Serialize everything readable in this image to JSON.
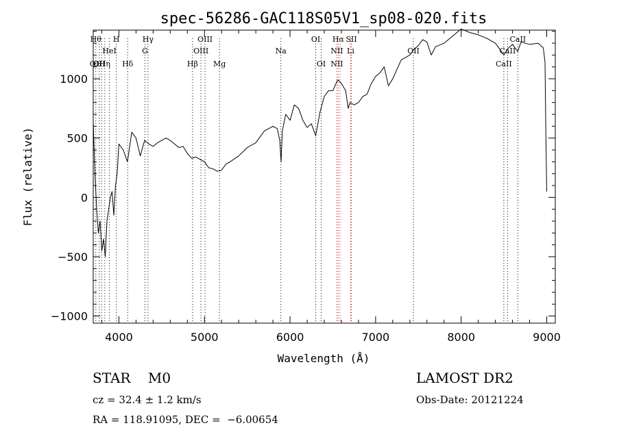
{
  "chart_data": {
    "type": "line",
    "title": "spec-56286-GAC118S05V1_sp08-020.fits",
    "xlabel": "Wavelength (Å)",
    "ylabel": "Flux (relative)",
    "xlim": [
      3700,
      9100
    ],
    "ylim": [
      -1060,
      1410
    ],
    "xticks": [
      4000,
      5000,
      6000,
      7000,
      8000,
      9000
    ],
    "xtick_labels": [
      "4000",
      "5000",
      "6000",
      "7000",
      "8000",
      "9000"
    ],
    "yticks": [
      -1000,
      -500,
      0,
      500,
      1000
    ],
    "ytick_labels": [
      "−1000",
      "−500",
      "0",
      "500",
      "1000"
    ],
    "grid": false,
    "legend": "none",
    "series": [
      {
        "line_color": "#000000",
        "x": [
          3700,
          3720,
          3740,
          3760,
          3780,
          3800,
          3820,
          3840,
          3860,
          3880,
          3900,
          3920,
          3940,
          3960,
          3980,
          4000,
          4050,
          4100,
          4150,
          4200,
          4250,
          4300,
          4350,
          4400,
          4450,
          4500,
          4550,
          4600,
          4650,
          4700,
          4750,
          4800,
          4850,
          4900,
          4950,
          5000,
          5050,
          5100,
          5150,
          5200,
          5250,
          5300,
          5400,
          5500,
          5600,
          5700,
          5800,
          5850,
          5880,
          5895,
          5910,
          5950,
          6000,
          6050,
          6100,
          6150,
          6200,
          6250,
          6300,
          6350,
          6400,
          6450,
          6500,
          6550,
          6563,
          6600,
          6650,
          6680,
          6700,
          6750,
          6800,
          6850,
          6900,
          6950,
          7000,
          7050,
          7100,
          7150,
          7200,
          7250,
          7300,
          7350,
          7400,
          7450,
          7500,
          7550,
          7600,
          7650,
          7700,
          7800,
          7900,
          8000,
          8100,
          8200,
          8300,
          8400,
          8500,
          8540,
          8600,
          8660,
          8700,
          8800,
          8900,
          8960,
          8980,
          8990,
          9000
        ],
        "y": [
          640,
          200,
          -100,
          -300,
          -200,
          -450,
          -350,
          -500,
          -200,
          -100,
          0,
          50,
          -150,
          100,
          200,
          450,
          400,
          300,
          550,
          500,
          350,
          480,
          450,
          430,
          460,
          480,
          500,
          480,
          450,
          420,
          430,
          370,
          330,
          340,
          320,
          300,
          250,
          240,
          220,
          230,
          280,
          300,
          350,
          420,
          460,
          560,
          600,
          580,
          480,
          300,
          560,
          700,
          650,
          780,
          750,
          650,
          590,
          620,
          520,
          720,
          850,
          900,
          900,
          980,
          990,
          960,
          900,
          750,
          800,
          780,
          800,
          850,
          870,
          960,
          1020,
          1050,
          1100,
          940,
          1000,
          1080,
          1160,
          1180,
          1200,
          1250,
          1280,
          1330,
          1310,
          1200,
          1270,
          1300,
          1360,
          1420,
          1390,
          1370,
          1340,
          1300,
          1200,
          1250,
          1290,
          1230,
          1310,
          1290,
          1300,
          1260,
          1140,
          500,
          50
        ]
      }
    ],
    "line_marks": [
      {
        "wavelength": 3730,
        "labels": [
          "Hθ",
          "",
          "OII"
        ]
      },
      {
        "wavelength": 3770,
        "labels": [
          "",
          "",
          "OII"
        ]
      },
      {
        "wavelength": 3798,
        "labels": [
          "",
          "",
          ""
        ]
      },
      {
        "wavelength": 3835,
        "labels": [
          "",
          "",
          "Hη"
        ]
      },
      {
        "wavelength": 3889,
        "labels": [
          "",
          "HeI",
          ""
        ]
      },
      {
        "wavelength": 3970,
        "labels": [
          "H",
          "",
          ""
        ]
      },
      {
        "wavelength": 4102,
        "labels": [
          "",
          "",
          "Hδ"
        ]
      },
      {
        "wavelength": 4305,
        "labels": [
          "",
          "G",
          ""
        ]
      },
      {
        "wavelength": 4340,
        "labels": [
          "Hγ",
          "",
          ""
        ]
      },
      {
        "wavelength": 4861,
        "labels": [
          "",
          "",
          "Hβ"
        ]
      },
      {
        "wavelength": 4959,
        "labels": [
          "",
          "OIII",
          ""
        ]
      },
      {
        "wavelength": 5007,
        "labels": [
          "OIII",
          "",
          ""
        ]
      },
      {
        "wavelength": 5175,
        "labels": [
          "",
          "",
          "Mg"
        ]
      },
      {
        "wavelength": 5893,
        "labels": [
          "",
          "Na",
          ""
        ]
      },
      {
        "wavelength": 6300,
        "labels": [
          "OI",
          "",
          ""
        ]
      },
      {
        "wavelength": 6364,
        "labels": [
          "",
          "",
          "OI"
        ]
      },
      {
        "wavelength": 6548,
        "labels": [
          "",
          "NII",
          "NII"
        ]
      },
      {
        "wavelength": 6563,
        "labels": [
          "Hα",
          "",
          ""
        ]
      },
      {
        "wavelength": 6584,
        "labels": [
          "",
          "",
          ""
        ]
      },
      {
        "wavelength": 6708,
        "labels": [
          "",
          "Li",
          ""
        ]
      },
      {
        "wavelength": 6717,
        "labels": [
          "SII",
          "",
          ""
        ]
      },
      {
        "wavelength": 7442,
        "labels": [
          "",
          "OII",
          ""
        ]
      },
      {
        "wavelength": 8498,
        "labels": [
          "",
          "",
          "CaII"
        ]
      },
      {
        "wavelength": 8542,
        "labels": [
          "",
          "CaII",
          ""
        ]
      },
      {
        "wavelength": 8662,
        "labels": [
          "CaII",
          "",
          ""
        ]
      }
    ],
    "line_mark_colors": [
      "#000000",
      "#cc0000"
    ]
  },
  "info": {
    "object_class": "STAR    M0",
    "survey": "LAMOST DR2",
    "cz": "cz = 32.4 ± 1.2 km/s",
    "obs_date": "Obs-Date: 20121224",
    "radec": "RA = 118.91095, DEC =  −6.00654"
  }
}
